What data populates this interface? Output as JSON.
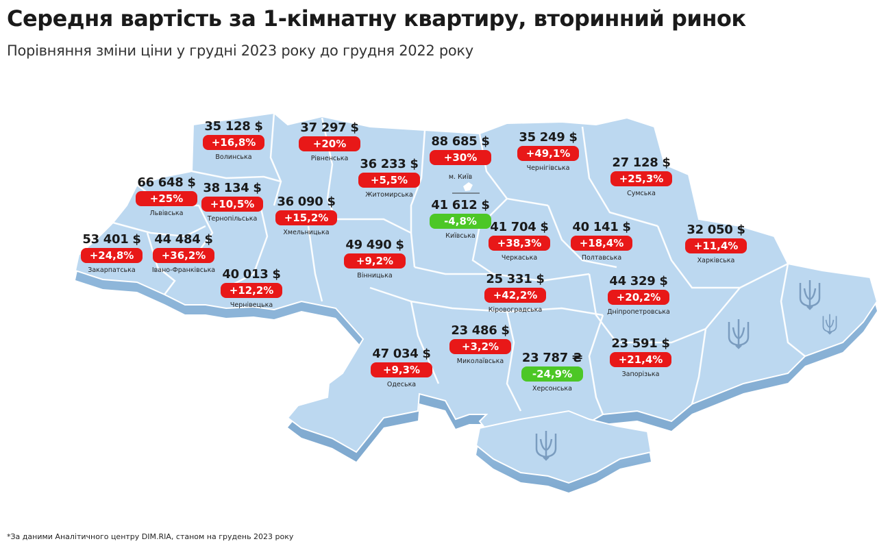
{
  "title": "Середня вартість за 1-кімнатну квартиру, вторинний ринок",
  "subtitle": "Порівняння зміни ціни у грудні 2023 року до грудня 2022 року",
  "footnote": "*За даними Аналітичного центру DIM.RIA, станом на грудень 2023 року",
  "colors": {
    "map_fill": "#b9d6ee",
    "map_edge": "#8db4d6",
    "increase": "#e81818",
    "decrease": "#4cc726"
  },
  "regions": [
    {
      "name": "Волинська",
      "price": "35 128 $",
      "change": "+16,8%",
      "direction": "up"
    },
    {
      "name": "Рівненська",
      "price": "37 297 $",
      "change": "+20%",
      "direction": "up"
    },
    {
      "name": "Житомирська",
      "price": "36 233 $",
      "change": "+5,5%",
      "direction": "up"
    },
    {
      "name": "м. Київ",
      "price": "88 685 $",
      "change": "+30%",
      "direction": "up"
    },
    {
      "name": "Чернігівська",
      "price": "35 249 $",
      "change": "+49,1%",
      "direction": "up"
    },
    {
      "name": "Сумська",
      "price": "27 128 $",
      "change": "+25,3%",
      "direction": "up"
    },
    {
      "name": "Львівська",
      "price": "66 648 $",
      "change": "+25%",
      "direction": "up"
    },
    {
      "name": "Тернопільська",
      "price": "38 134 $",
      "change": "+10,5%",
      "direction": "up"
    },
    {
      "name": "Хмельницька",
      "price": "36 090 $",
      "change": "+15,2%",
      "direction": "up"
    },
    {
      "name": "Київська",
      "price": "41 612 $",
      "change": "-4,8%",
      "direction": "down"
    },
    {
      "name": "Черкаська",
      "price": "41 704 $",
      "change": "+38,3%",
      "direction": "up"
    },
    {
      "name": "Полтавська",
      "price": "40 141 $",
      "change": "+18,4%",
      "direction": "up"
    },
    {
      "name": "Харківська",
      "price": "32 050 $",
      "change": "+11,4%",
      "direction": "up"
    },
    {
      "name": "Закарпатська",
      "price": "53 401 $",
      "change": "+24,8%",
      "direction": "up"
    },
    {
      "name": "Івано-Франківська",
      "price": "44 484 $",
      "change": "+36,2%",
      "direction": "up"
    },
    {
      "name": "Вінницька",
      "price": "49 490 $",
      "change": "+9,2%",
      "direction": "up"
    },
    {
      "name": "Чернівецька",
      "price": "40 013 $",
      "change": "+12,2%",
      "direction": "up"
    },
    {
      "name": "Кіровоградська",
      "price": "25 331 $",
      "change": "+42,2%",
      "direction": "up"
    },
    {
      "name": "Дніпропетровська",
      "price": "44 329 $",
      "change": "+20,2%",
      "direction": "up"
    },
    {
      "name": "Миколаївська",
      "price": "23 486 $",
      "change": "+3,2%",
      "direction": "up"
    },
    {
      "name": "Одеська",
      "price": "47 034 $",
      "change": "+9,3%",
      "direction": "up"
    },
    {
      "name": "Херсонська",
      "price": "23 787 ₴",
      "change": "-24,9%",
      "direction": "down"
    },
    {
      "name": "Запорізька",
      "price": "23 591 $",
      "change": "+21,4%",
      "direction": "up"
    }
  ],
  "occupied_markers": [
    "trident-icon",
    "trident-icon",
    "trident-icon",
    "trident-icon"
  ]
}
